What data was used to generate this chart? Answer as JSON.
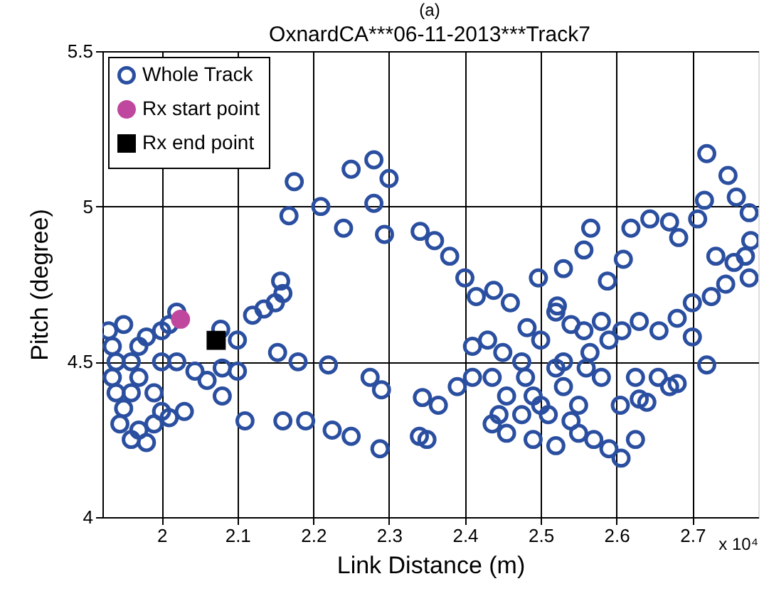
{
  "chart_data": {
    "type": "scatter",
    "title": "OxnardCA***06-11-2013***Track7",
    "xlabel": "Link Distance (m)",
    "ylabel": "Pitch (degree)",
    "annotations": [
      "(a)",
      "x 10⁴"
    ],
    "xlim": [
      1.922,
      2.787
    ],
    "xticks": [
      2,
      2.1,
      2.2,
      2.3,
      2.4,
      2.5,
      2.6,
      2.7
    ],
    "ylim": [
      4,
      5.5
    ],
    "yticks": [
      4,
      4.5,
      5,
      5.5
    ],
    "grid": true,
    "legend": "top left",
    "series": [
      {
        "name": "Whole Track",
        "color": "#2b4fa0",
        "marker": "circle",
        "x": [
          1.93,
          1.935,
          1.94,
          1.935,
          1.94,
          1.95,
          1.945,
          1.96,
          1.97,
          1.98,
          1.99,
          2.0,
          2.01,
          1.99,
          1.97,
          1.96,
          1.97,
          1.98,
          2.0,
          2.01,
          2.02,
          2.0,
          2.02,
          1.95,
          1.96,
          2.078,
          2.1,
          2.12,
          2.135,
          2.157,
          2.16,
          2.15,
          2.044,
          2.06,
          2.08,
          2.1,
          2.153,
          2.18,
          2.22,
          2.275,
          2.29,
          2.225,
          2.25,
          2.288,
          2.34,
          2.365,
          2.08,
          2.11,
          2.16,
          2.19,
          2.03,
          2.344,
          2.35,
          2.39,
          2.41,
          2.168,
          2.175,
          2.21,
          2.24,
          2.25,
          2.28,
          2.3,
          2.28,
          2.294,
          2.341,
          2.36,
          2.38,
          2.4,
          2.415,
          2.438,
          2.46,
          2.482,
          2.497,
          2.522,
          2.53,
          2.557,
          2.566,
          2.588,
          2.609,
          2.619,
          2.644,
          2.67,
          2.682,
          2.707,
          2.719,
          2.716,
          2.747,
          2.758,
          2.775,
          2.777,
          2.77,
          2.775,
          2.755,
          2.731,
          2.744,
          2.725,
          2.7,
          2.68,
          2.656,
          2.63,
          2.607,
          2.58,
          2.557,
          2.54,
          2.52,
          2.719,
          2.7,
          2.68,
          2.655,
          2.63,
          2.625,
          2.606,
          2.59,
          2.57,
          2.55,
          2.52,
          2.49,
          2.455,
          2.436,
          2.436,
          2.455,
          2.48,
          2.5,
          2.53,
          2.55,
          2.58,
          2.605,
          2.59,
          2.565,
          2.53,
          2.5,
          2.475,
          2.45,
          2.43,
          2.41,
          2.445,
          2.51,
          2.54,
          2.475,
          2.49,
          2.52,
          2.56,
          2.625,
          2.64,
          2.67
        ],
        "values": [
          4.6,
          4.55,
          4.5,
          4.45,
          4.4,
          4.35,
          4.3,
          4.25,
          4.28,
          4.24,
          4.3,
          4.34,
          4.32,
          4.4,
          4.45,
          4.5,
          4.55,
          4.58,
          4.6,
          4.62,
          4.66,
          4.5,
          4.5,
          4.62,
          4.4,
          4.605,
          4.57,
          4.65,
          4.67,
          4.76,
          4.72,
          4.69,
          4.47,
          4.44,
          4.48,
          4.47,
          4.53,
          4.5,
          4.49,
          4.45,
          4.41,
          4.28,
          4.26,
          4.22,
          4.26,
          4.36,
          4.39,
          4.31,
          4.31,
          4.31,
          4.34,
          4.385,
          4.25,
          4.42,
          4.45,
          4.97,
          5.08,
          5.0,
          4.93,
          5.12,
          5.15,
          5.09,
          5.01,
          4.91,
          4.92,
          4.89,
          4.84,
          4.77,
          4.71,
          4.73,
          4.69,
          4.61,
          4.77,
          4.68,
          4.8,
          4.86,
          4.93,
          4.76,
          4.83,
          4.93,
          4.96,
          4.95,
          4.9,
          4.96,
          5.17,
          5.02,
          5.1,
          5.03,
          4.98,
          4.89,
          4.84,
          4.77,
          4.82,
          4.84,
          4.75,
          4.71,
          4.69,
          4.64,
          4.6,
          4.63,
          4.6,
          4.63,
          4.6,
          4.62,
          4.66,
          4.49,
          4.58,
          4.43,
          4.45,
          4.38,
          4.25,
          4.19,
          4.22,
          4.25,
          4.27,
          4.23,
          4.25,
          4.27,
          4.3,
          4.45,
          4.39,
          4.45,
          4.36,
          4.42,
          4.36,
          4.45,
          4.36,
          4.57,
          4.53,
          4.5,
          4.57,
          4.5,
          4.53,
          4.57,
          4.55,
          4.33,
          4.33,
          4.31,
          4.33,
          4.39,
          4.48,
          4.48,
          4.45,
          4.37,
          4.42
        ]
      },
      {
        "name": "Rx start point",
        "color": "#c0479e",
        "marker": "circle",
        "x": [
          2.025
        ],
        "values": [
          4.637
        ]
      },
      {
        "name": "Rx end point",
        "color": "#000000",
        "marker": "square",
        "x": [
          2.072
        ],
        "values": [
          4.569
        ]
      }
    ]
  }
}
